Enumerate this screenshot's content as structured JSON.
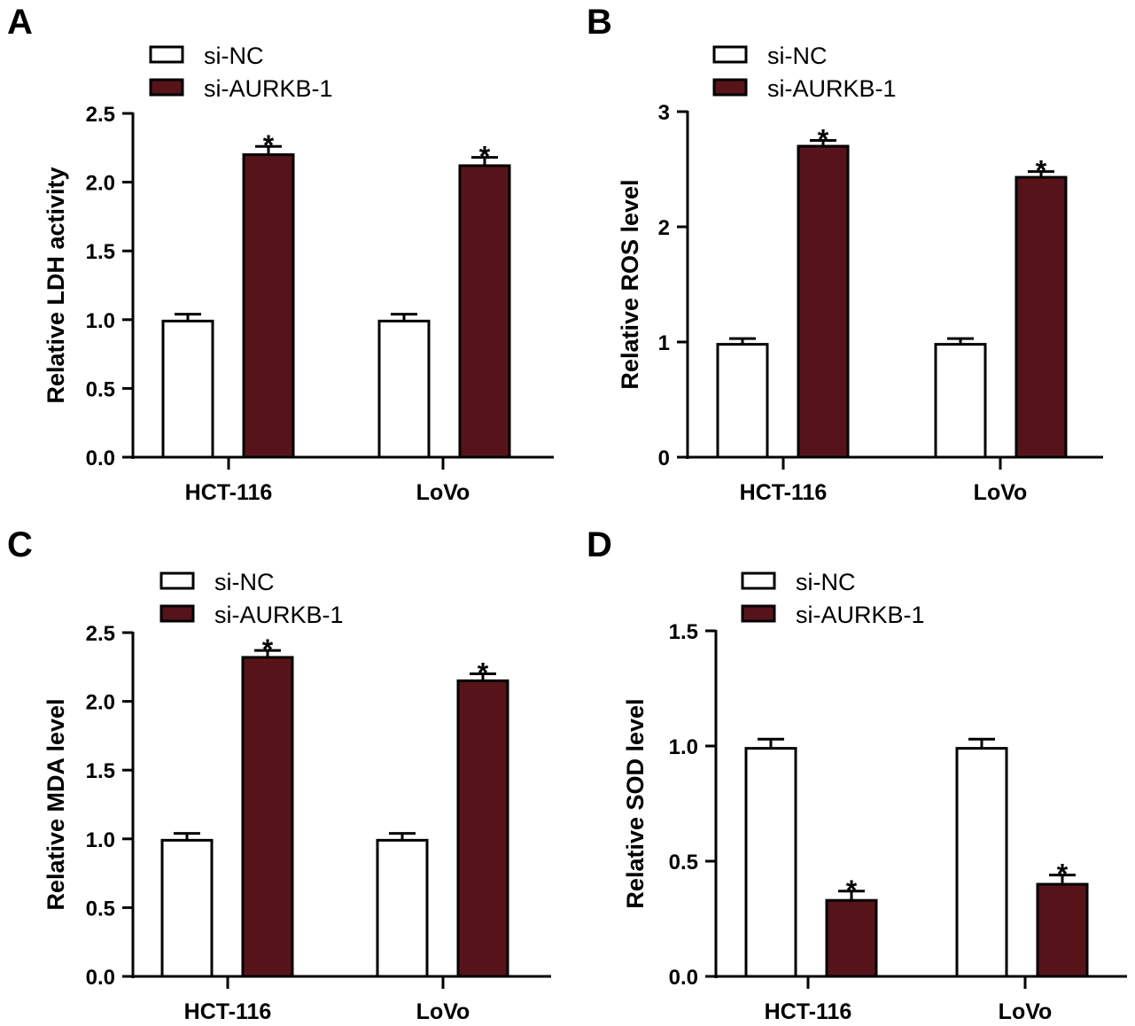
{
  "colors": {
    "si_nc_fill": "#ffffff",
    "si_aurkb_fill": "#56141a",
    "stroke": "#000000"
  },
  "legend": [
    "si-NC",
    "si-AURKB-1"
  ],
  "chart_data": [
    {
      "panel": "A",
      "type": "bar",
      "title": "",
      "xlabel": "",
      "ylabel": "Relative LDH activity",
      "categories": [
        "HCT-116",
        "LoVo"
      ],
      "ylim": [
        0,
        2.5
      ],
      "yticks": [
        0.0,
        0.5,
        1.0,
        1.5,
        2.0,
        2.5
      ],
      "ytick_labels": [
        "0.0",
        "0.5",
        "1.0",
        "1.5",
        "2.0",
        "2.5"
      ],
      "series": [
        {
          "name": "si-NC",
          "values": [
            0.99,
            0.99
          ],
          "errors": [
            0.05,
            0.05
          ],
          "significance": [
            "",
            ""
          ]
        },
        {
          "name": "si-AURKB-1",
          "values": [
            2.2,
            2.12
          ],
          "errors": [
            0.06,
            0.06
          ],
          "significance": [
            "*",
            "*"
          ]
        }
      ],
      "legend_position": "top-left"
    },
    {
      "panel": "B",
      "type": "bar",
      "title": "",
      "xlabel": "",
      "ylabel": "Relative ROS level",
      "categories": [
        "HCT-116",
        "LoVo"
      ],
      "ylim": [
        0,
        3
      ],
      "yticks": [
        0,
        1,
        2,
        3
      ],
      "ytick_labels": [
        "0",
        "1",
        "2",
        "3"
      ],
      "series": [
        {
          "name": "si-NC",
          "values": [
            0.98,
            0.98
          ],
          "errors": [
            0.05,
            0.05
          ],
          "significance": [
            "",
            ""
          ]
        },
        {
          "name": "si-AURKB-1",
          "values": [
            2.7,
            2.43
          ],
          "errors": [
            0.05,
            0.05
          ],
          "significance": [
            "*",
            "*"
          ]
        }
      ],
      "legend_position": "top-left"
    },
    {
      "panel": "C",
      "type": "bar",
      "title": "",
      "xlabel": "",
      "ylabel": "Relative MDA level",
      "categories": [
        "HCT-116",
        "LoVo"
      ],
      "ylim": [
        0,
        2.5
      ],
      "yticks": [
        0.0,
        0.5,
        1.0,
        1.5,
        2.0,
        2.5
      ],
      "ytick_labels": [
        "0.0",
        "0.5",
        "1.0",
        "1.5",
        "2.0",
        "2.5"
      ],
      "series": [
        {
          "name": "si-NC",
          "values": [
            0.99,
            0.99
          ],
          "errors": [
            0.05,
            0.05
          ],
          "significance": [
            "",
            ""
          ]
        },
        {
          "name": "si-AURKB-1",
          "values": [
            2.32,
            2.15
          ],
          "errors": [
            0.05,
            0.05
          ],
          "significance": [
            "*",
            "*"
          ]
        }
      ],
      "legend_position": "top-left"
    },
    {
      "panel": "D",
      "type": "bar",
      "title": "",
      "xlabel": "",
      "ylabel": "Relative SOD level",
      "categories": [
        "HCT-116",
        "LoVo"
      ],
      "ylim": [
        0,
        1.5
      ],
      "yticks": [
        0.0,
        0.5,
        1.0,
        1.5
      ],
      "ytick_labels": [
        "0.0",
        "0.5",
        "1.0",
        "1.5"
      ],
      "series": [
        {
          "name": "si-NC",
          "values": [
            0.99,
            0.99
          ],
          "errors": [
            0.04,
            0.04
          ],
          "significance": [
            "",
            ""
          ]
        },
        {
          "name": "si-AURKB-1",
          "values": [
            0.33,
            0.4
          ],
          "errors": [
            0.04,
            0.04
          ],
          "significance": [
            "*",
            "*"
          ]
        }
      ],
      "legend_position": "top-left"
    }
  ]
}
